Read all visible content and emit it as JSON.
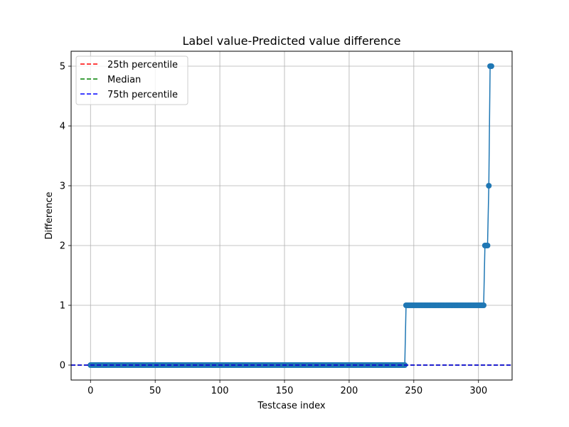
{
  "chart_data": {
    "type": "line",
    "title": "Label value-Predicted value difference",
    "xlabel": "Testcase index",
    "ylabel": "Difference",
    "xlim": [
      -15,
      326
    ],
    "ylim": [
      -0.25,
      5.25
    ],
    "xticks": [
      0,
      50,
      100,
      150,
      200,
      250,
      300
    ],
    "yticks": [
      0,
      1,
      2,
      3,
      4,
      5
    ],
    "grid": true,
    "legend_position": "top-left",
    "series": [
      {
        "type": "line-with-markers",
        "color": "#1f77b4",
        "segments": [
          {
            "from": 0,
            "to": 243,
            "value": 0
          },
          {
            "from": 244,
            "to": 304,
            "value": 1
          },
          {
            "from": 305,
            "to": 307,
            "value": 2
          },
          {
            "from": 308,
            "to": 308,
            "value": 3
          },
          {
            "from": 309,
            "to": 310,
            "value": 5
          }
        ]
      }
    ],
    "reference_lines": [
      {
        "name": "25th percentile",
        "value": 0,
        "color": "#ff0000",
        "style": "dashed"
      },
      {
        "name": "Median",
        "value": 0,
        "color": "#008000",
        "style": "dashed"
      },
      {
        "name": "75th percentile",
        "value": 0,
        "color": "#0000ff",
        "style": "dashed"
      }
    ]
  }
}
